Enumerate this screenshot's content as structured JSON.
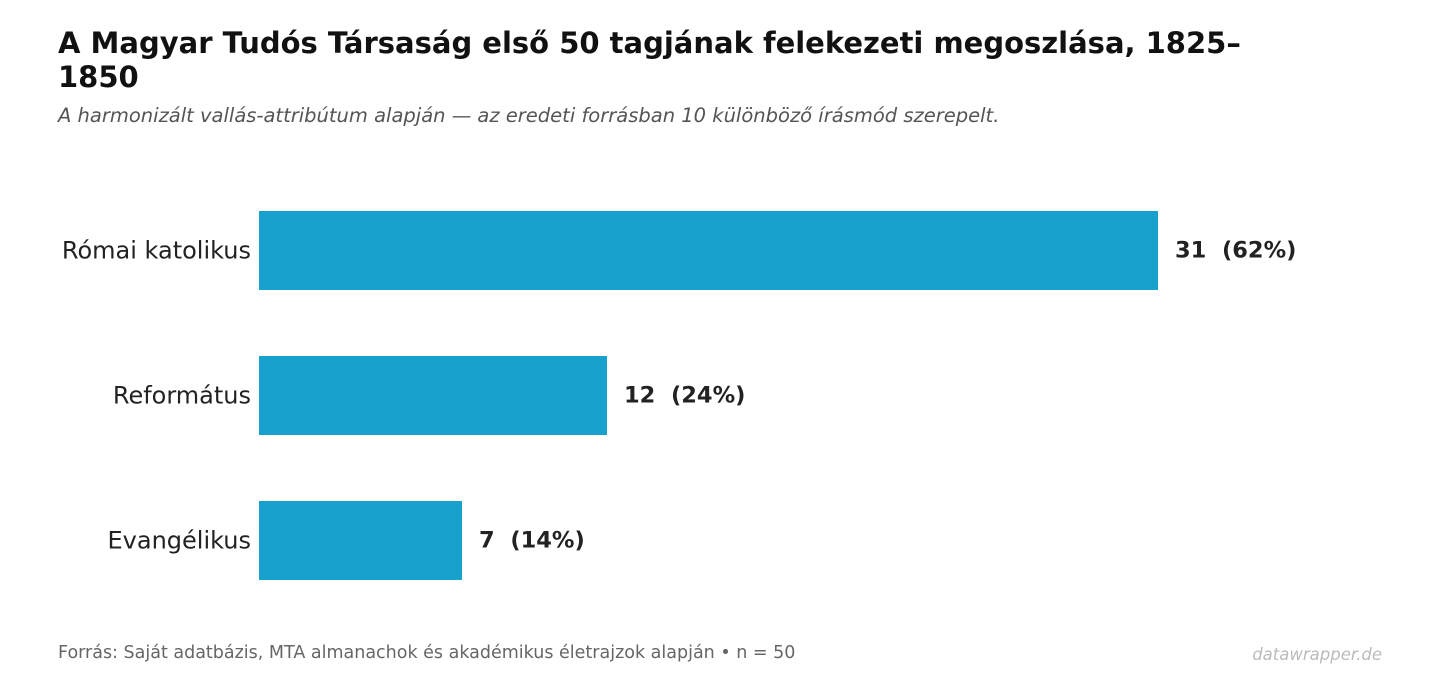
{
  "chart_data": {
    "type": "bar",
    "orientation": "horizontal",
    "title": "A Magyar Tudós Társaság első 50 tagjának felekezeti megoszlása, 1825–1850",
    "subtitle": "A harmonizált vallás-attribútum alapján — az eredeti forrásban 10 különböző írásmód szerepelt.",
    "categories": [
      "Római katolikus",
      "Református",
      "Evangélikus"
    ],
    "values": [
      31,
      12,
      7
    ],
    "value_labels": [
      "31  (62%)",
      "12  (24%)",
      "7  (14%)"
    ],
    "xlim": [
      0,
      31
    ],
    "grid": false,
    "legend": "none",
    "bar_color": "#19a1cd"
  },
  "footer": {
    "source": "Forrás: Saját adatbázis, MTA almanachok és akadémikus életrajzok alapján  •  n = 50",
    "brand": "datawrapper.de"
  }
}
